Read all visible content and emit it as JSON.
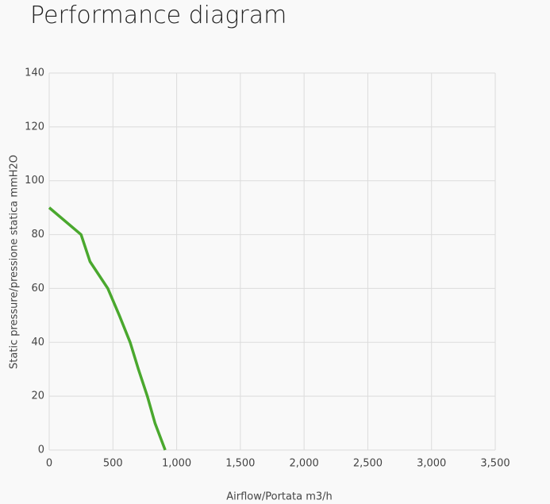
{
  "chart_data": {
    "type": "line",
    "title": "Performance diagram",
    "x_label": "Airflow/Portata m3/h",
    "y_label": "Static pressure/pressione statica mmH2O",
    "x": [
      0,
      250,
      320,
      460,
      550,
      635,
      700,
      770,
      830,
      910
    ],
    "series": [
      {
        "color": "#4aa82e",
        "values": [
          90,
          80,
          70,
          60,
          50,
          40,
          30,
          20,
          10,
          0
        ]
      }
    ],
    "xlim": [
      0,
      3500
    ],
    "xticks": [
      0,
      500,
      {
        "value": 1000,
        "label": "1,000"
      },
      {
        "value": 1500,
        "label": "1,500"
      },
      {
        "value": 2000,
        "label": "2,000"
      },
      {
        "value": 2500,
        "label": "2,500"
      },
      {
        "value": 3000,
        "label": "3,000"
      },
      {
        "value": 3500,
        "label": "3,500"
      }
    ],
    "ylim": [
      0,
      140
    ],
    "yticks": [
      0,
      20,
      40,
      60,
      80,
      100,
      120,
      140
    ],
    "grid": true
  }
}
